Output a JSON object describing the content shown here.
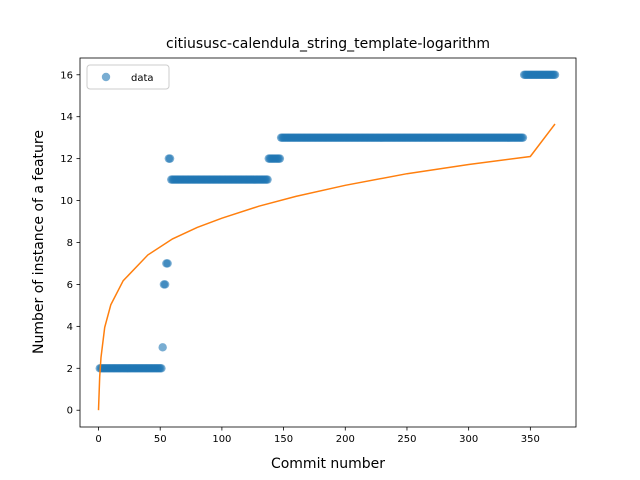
{
  "chart_data": {
    "type": "scatter",
    "title": "citiususc-calendula_string_template-logarithm",
    "xlabel": "Commit number",
    "ylabel": "Number of instance of a feature",
    "xlim": [
      -15,
      387
    ],
    "ylim": [
      -0.8,
      16.8
    ],
    "xticks": [
      0,
      50,
      100,
      150,
      200,
      250,
      300,
      350
    ],
    "yticks": [
      0,
      2,
      4,
      6,
      8,
      10,
      12,
      14,
      16
    ],
    "grid": false,
    "legend": {
      "placement": "top-left",
      "entries": [
        "data"
      ]
    },
    "colors": {
      "points": "#1f77b4",
      "fit": "#ff7f0e"
    },
    "series": [
      {
        "name": "data",
        "kind": "scatter",
        "segments": [
          {
            "x_start": 1,
            "x_end": 51,
            "y": 2
          },
          {
            "x_start": 52,
            "x_end": 52,
            "y": 3
          },
          {
            "x_start": 53,
            "x_end": 54,
            "y": 6
          },
          {
            "x_start": 55,
            "x_end": 56,
            "y": 7
          },
          {
            "x_start": 57,
            "x_end": 58,
            "y": 12
          },
          {
            "x_start": 59,
            "x_end": 137,
            "y": 11
          },
          {
            "x_start": 138,
            "x_end": 147,
            "y": 12
          },
          {
            "x_start": 148,
            "x_end": 344,
            "y": 13
          },
          {
            "x_start": 345,
            "x_end": 370,
            "y": 16
          }
        ]
      },
      {
        "kind": "line",
        "model": "logarithmic fit",
        "points": [
          [
            0,
            0
          ],
          [
            1,
            1.6
          ],
          [
            2,
            2.52
          ],
          [
            5,
            3.95
          ],
          [
            10,
            5.03
          ],
          [
            20,
            6.18
          ],
          [
            40,
            7.41
          ],
          [
            60,
            8.17
          ],
          [
            80,
            8.72
          ],
          [
            100,
            9.16
          ],
          [
            130,
            9.73
          ],
          [
            160,
            10.2
          ],
          [
            200,
            10.73
          ],
          [
            250,
            11.28
          ],
          [
            300,
            11.72
          ],
          [
            350,
            12.1
          ],
          [
            370,
            13.65
          ]
        ]
      }
    ]
  }
}
